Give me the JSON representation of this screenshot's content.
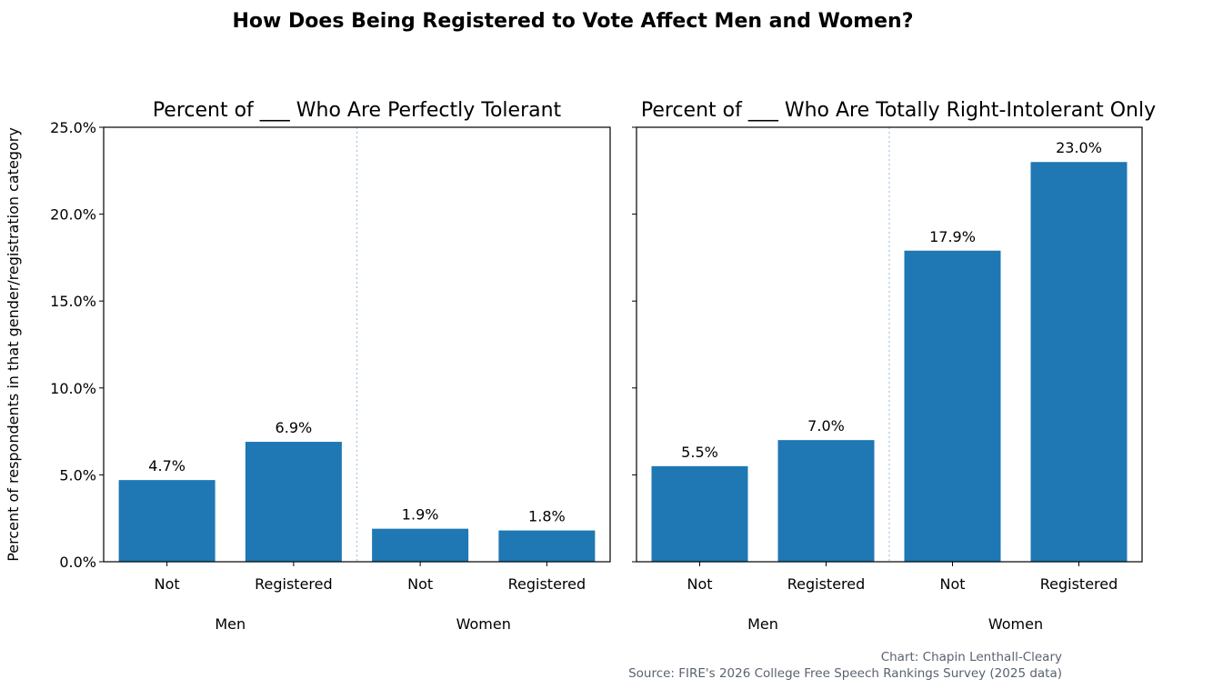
{
  "chart_data": [
    {
      "type": "bar",
      "title": "Percent of ___ Who Are Perfectly Tolerant",
      "categories": [
        "Not",
        "Registered",
        "Not",
        "Registered"
      ],
      "groups": [
        "Men",
        "Women"
      ],
      "values": [
        4.7,
        6.9,
        1.9,
        1.8
      ],
      "labels": [
        "4.7%",
        "6.9%",
        "1.9%",
        "1.8%"
      ],
      "ylim": [
        0,
        25
      ],
      "yticks": [
        "0.0%",
        "5.0%",
        "10.0%",
        "15.0%",
        "20.0%",
        "25.0%"
      ],
      "grid": false
    },
    {
      "type": "bar",
      "title": "Percent of ___ Who Are Totally Right-Intolerant Only",
      "categories": [
        "Not",
        "Registered",
        "Not",
        "Registered"
      ],
      "groups": [
        "Men",
        "Women"
      ],
      "values": [
        5.5,
        7.0,
        17.9,
        23.0
      ],
      "labels": [
        "5.5%",
        "7.0%",
        "17.9%",
        "23.0%"
      ],
      "ylim": [
        0,
        25
      ],
      "grid": false
    }
  ],
  "suptitle": "How Does Being Registered to Vote Affect Men and Women?",
  "ylabel": "Percent of respondents in that gender/registration category",
  "credit": "Chart: Chapin Lenthall-Cleary",
  "source": "Source: FIRE's 2026 College Free Speech Rankings Survey (2025 data)",
  "colors": {
    "bar": "#1f77b4",
    "divider": "#a8c4e0",
    "footer": "#5a6270"
  }
}
